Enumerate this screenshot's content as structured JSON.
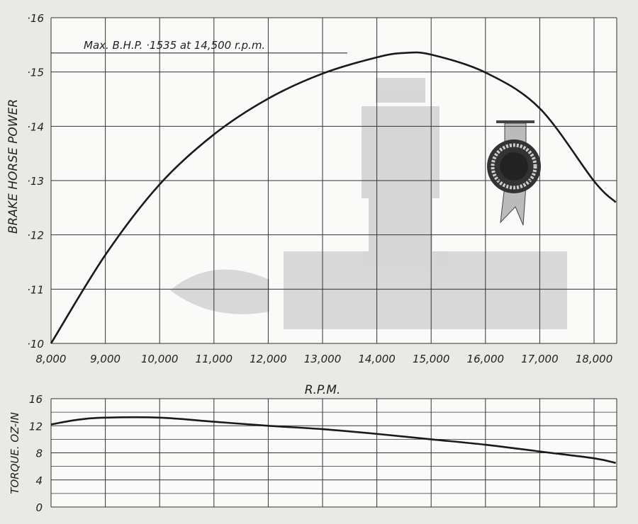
{
  "chart_data": [
    {
      "type": "line",
      "title": "",
      "annotation": "Max. B.H.P. ·1535 at 14,500 r.p.m.",
      "xlabel": "R.P.M.",
      "ylabel": "BRAKE HORSE POWER",
      "xlim": [
        8000,
        18400
      ],
      "ylim": [
        0.1,
        0.16
      ],
      "grid": true,
      "x_ticks": [
        "8,000",
        "9,000",
        "10,000",
        "11,000",
        "12,000",
        "13,000",
        "14,000",
        "15,000",
        "16,000",
        "17,000",
        "18,000"
      ],
      "y_ticks": [
        "·10",
        "·11",
        "·12",
        "·13",
        "·14",
        "·15",
        "·16"
      ],
      "max_line": 0.1535,
      "x": [
        8000,
        9000,
        10000,
        11000,
        12000,
        13000,
        14000,
        14500,
        15000,
        16000,
        17000,
        18000,
        18400
      ],
      "y": [
        0.1,
        0.1163,
        0.1293,
        0.1385,
        0.1451,
        0.1497,
        0.1527,
        0.1535,
        0.1532,
        0.1499,
        0.1433,
        0.1299,
        0.126
      ]
    },
    {
      "type": "line",
      "title": "",
      "xlabel": "",
      "ylabel": "TORQUE. OZ-IN",
      "xlim": [
        8000,
        18400
      ],
      "ylim": [
        0,
        16
      ],
      "grid": true,
      "y_ticks": [
        "0",
        "4",
        "8",
        "12",
        "16"
      ],
      "x": [
        8000,
        8500,
        9000,
        10000,
        11000,
        12000,
        13000,
        14000,
        15000,
        16000,
        17000,
        18000,
        18400
      ],
      "y": [
        12.2,
        12.9,
        13.2,
        13.2,
        12.6,
        12.0,
        11.5,
        10.8,
        10.0,
        9.2,
        8.2,
        7.2,
        6.5
      ]
    }
  ],
  "colors": {
    "line": "#1a1a1a",
    "grid": "#333333",
    "paper": "#e9e9e6",
    "plot": "#fafaf8",
    "watermark": "#c8c8c8"
  }
}
